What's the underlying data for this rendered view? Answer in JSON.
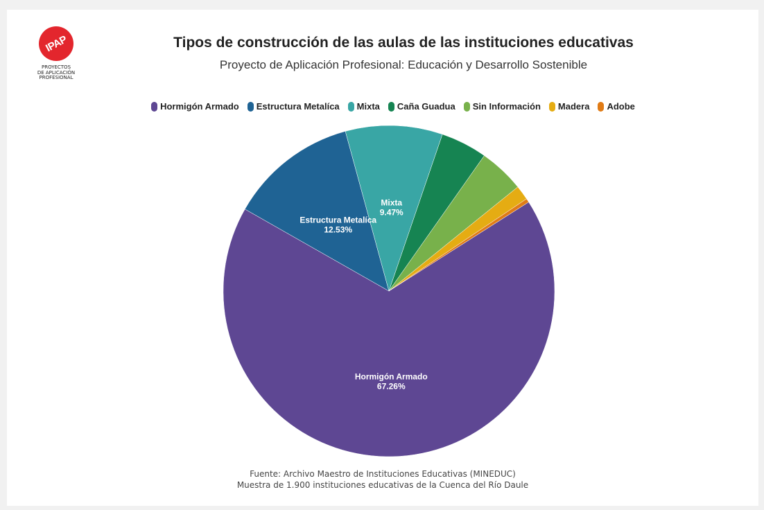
{
  "logo": {
    "circle_text": "IPAP",
    "lines": [
      "PROYECTOS",
      "DE APLICACIÓN",
      "PROFESIONAL"
    ]
  },
  "header": {
    "title": "Tipos de construcción de las aulas de las instituciones educativas",
    "subtitle": "Proyecto de Aplicación Profesional: Educación y Desarrollo Sostenible"
  },
  "footer": {
    "source": "Fuente: Archivo Maestro de Instituciones Educativas (MINEDUC)",
    "sample": "Muestra de 1.900 instituciones educativas de la Cuenca del Río Daule"
  },
  "chart_data": {
    "type": "pie",
    "legend_position": "top",
    "slices": [
      {
        "label": "Hormigón Armado",
        "value": 67.26,
        "color": "#5e4793",
        "value_label": "67.26%",
        "show_label": true
      },
      {
        "label": "Estructura Metalíca",
        "value": 12.53,
        "color": "#1f6394",
        "value_label": "12.53%",
        "show_label": true
      },
      {
        "label": "Mixta",
        "value": 9.47,
        "color": "#39a6a5",
        "value_label": "9.47%",
        "show_label": true
      },
      {
        "label": "Caña Guadua",
        "value": 4.53,
        "color": "#168452",
        "value_label": "",
        "show_label": false
      },
      {
        "label": "Sin Información",
        "value": 4.42,
        "color": "#78b14b",
        "value_label": "",
        "show_label": false
      },
      {
        "label": "Madera",
        "value": 1.42,
        "color": "#e5ac13",
        "value_label": "",
        "show_label": false
      },
      {
        "label": "Adobe",
        "value": 0.37,
        "color": "#e07b16",
        "value_label": "",
        "show_label": false
      }
    ]
  }
}
